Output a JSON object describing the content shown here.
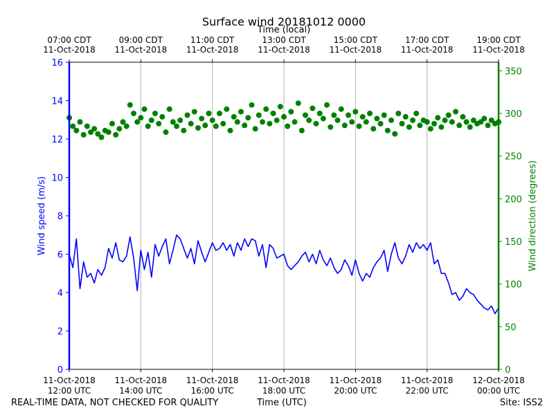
{
  "chart_data": {
    "type": "line+scatter",
    "title": "Surface wind 20181012 0000",
    "top_axis_label": "Time (local)",
    "xlabel": "Time (UTC)",
    "ylabel_left": "Wind speed (m/s)",
    "ylabel_right": "Wind direction (degrees)",
    "ylim_left": [
      0,
      16
    ],
    "ylim_right": [
      0,
      360
    ],
    "yticks_left": [
      "0",
      "2",
      "4",
      "6",
      "8",
      "10",
      "12",
      "14",
      "16"
    ],
    "yticks_right": [
      "0",
      "50",
      "100",
      "150",
      "200",
      "250",
      "300",
      "350"
    ],
    "xlim_hours_utc": [
      12,
      24
    ],
    "x_grid": true,
    "x_ticks_utc": [
      {
        "h": 12,
        "date": "11-Oct-2018",
        "time": "12:00 UTC"
      },
      {
        "h": 14,
        "date": "11-Oct-2018",
        "time": "14:00 UTC"
      },
      {
        "h": 16,
        "date": "11-Oct-2018",
        "time": "16:00 UTC"
      },
      {
        "h": 18,
        "date": "11-Oct-2018",
        "time": "18:00 UTC"
      },
      {
        "h": 20,
        "date": "11-Oct-2018",
        "time": "20:00 UTC"
      },
      {
        "h": 22,
        "date": "11-Oct-2018",
        "time": "22:00 UTC"
      },
      {
        "h": 24,
        "date": "12-Oct-2018",
        "time": "00:00 UTC"
      }
    ],
    "x_ticks_local": [
      {
        "h": 12,
        "time": "07:00 CDT",
        "date": "11-Oct-2018"
      },
      {
        "h": 14,
        "time": "09:00 CDT",
        "date": "11-Oct-2018"
      },
      {
        "h": 16,
        "time": "11:00 CDT",
        "date": "11-Oct-2018"
      },
      {
        "h": 18,
        "time": "13:00 CDT",
        "date": "11-Oct-2018"
      },
      {
        "h": 20,
        "time": "15:00 CDT",
        "date": "11-Oct-2018"
      },
      {
        "h": 22,
        "time": "17:00 CDT",
        "date": "11-Oct-2018"
      },
      {
        "h": 24,
        "time": "19:00 CDT",
        "date": "11-Oct-2018"
      }
    ],
    "series": [
      {
        "name": "Wind speed",
        "axis": "left",
        "style": "line",
        "color": "#0000ff",
        "x": [
          12.0,
          12.1,
          12.2,
          12.3,
          12.4,
          12.5,
          12.6,
          12.7,
          12.8,
          12.9,
          13.0,
          13.1,
          13.2,
          13.3,
          13.4,
          13.5,
          13.6,
          13.7,
          13.8,
          13.9,
          14.0,
          14.1,
          14.2,
          14.3,
          14.4,
          14.5,
          14.6,
          14.7,
          14.8,
          14.9,
          15.0,
          15.1,
          15.2,
          15.3,
          15.4,
          15.5,
          15.6,
          15.7,
          15.8,
          15.9,
          16.0,
          16.1,
          16.2,
          16.3,
          16.4,
          16.5,
          16.6,
          16.7,
          16.8,
          16.9,
          17.0,
          17.1,
          17.2,
          17.3,
          17.4,
          17.5,
          17.6,
          17.7,
          17.8,
          17.9,
          18.0,
          18.1,
          18.2,
          18.3,
          18.4,
          18.5,
          18.6,
          18.7,
          18.8,
          18.9,
          19.0,
          19.1,
          19.2,
          19.3,
          19.4,
          19.5,
          19.6,
          19.7,
          19.8,
          19.9,
          20.0,
          20.1,
          20.2,
          20.3,
          20.4,
          20.5,
          20.6,
          20.7,
          20.8,
          20.9,
          21.0,
          21.1,
          21.2,
          21.3,
          21.4,
          21.5,
          21.6,
          21.7,
          21.8,
          21.9,
          22.0,
          22.1,
          22.2,
          22.3,
          22.4,
          22.5,
          22.6,
          22.7,
          22.8,
          22.9,
          23.0,
          23.1,
          23.2,
          23.3,
          23.4,
          23.5,
          23.6,
          23.7,
          23.8,
          23.9,
          24.0
        ],
        "values": [
          6.0,
          5.3,
          6.8,
          4.2,
          5.6,
          4.8,
          5.0,
          4.5,
          5.2,
          4.9,
          5.3,
          6.3,
          5.8,
          6.6,
          5.7,
          5.6,
          5.9,
          6.9,
          5.8,
          4.1,
          6.2,
          5.2,
          6.1,
          4.8,
          6.5,
          5.9,
          6.4,
          6.8,
          5.5,
          6.2,
          7.0,
          6.8,
          6.3,
          5.8,
          6.3,
          5.5,
          6.7,
          6.1,
          5.6,
          6.1,
          6.6,
          6.2,
          6.3,
          6.6,
          6.2,
          6.5,
          5.9,
          6.6,
          6.2,
          6.8,
          6.4,
          6.8,
          6.7,
          5.9,
          6.5,
          5.3,
          6.5,
          6.3,
          5.8,
          5.9,
          6.0,
          5.4,
          5.2,
          5.4,
          5.6,
          5.9,
          6.1,
          5.6,
          6.0,
          5.5,
          6.2,
          5.7,
          5.4,
          5.8,
          5.3,
          5.0,
          5.2,
          5.7,
          5.4,
          4.9,
          5.7,
          5.0,
          4.6,
          5.0,
          4.8,
          5.3,
          5.6,
          5.8,
          6.2,
          5.1,
          6.0,
          6.6,
          5.8,
          5.5,
          5.9,
          6.5,
          6.1,
          6.6,
          6.3,
          6.5,
          6.2,
          6.6,
          5.5,
          5.7,
          5.0,
          5.0,
          4.5,
          3.9,
          4.0,
          3.6,
          3.8,
          4.2,
          4.0,
          3.9,
          3.6,
          3.4,
          3.2,
          3.1,
          3.3,
          2.9,
          3.2
        ]
      },
      {
        "name": "Wind direction",
        "axis": "right",
        "style": "scatter",
        "color": "#008000",
        "x": [
          12.0,
          12.1,
          12.2,
          12.3,
          12.4,
          12.5,
          12.6,
          12.7,
          12.8,
          12.9,
          13.0,
          13.1,
          13.2,
          13.3,
          13.4,
          13.5,
          13.6,
          13.7,
          13.8,
          13.9,
          14.0,
          14.1,
          14.2,
          14.3,
          14.4,
          14.5,
          14.6,
          14.7,
          14.8,
          14.9,
          15.0,
          15.1,
          15.2,
          15.3,
          15.4,
          15.5,
          15.6,
          15.7,
          15.8,
          15.9,
          16.0,
          16.1,
          16.2,
          16.3,
          16.4,
          16.5,
          16.6,
          16.7,
          16.8,
          16.9,
          17.0,
          17.1,
          17.2,
          17.3,
          17.4,
          17.5,
          17.6,
          17.7,
          17.8,
          17.9,
          18.0,
          18.1,
          18.2,
          18.3,
          18.4,
          18.5,
          18.6,
          18.7,
          18.8,
          18.9,
          19.0,
          19.1,
          19.2,
          19.3,
          19.4,
          19.5,
          19.6,
          19.7,
          19.8,
          19.9,
          20.0,
          20.1,
          20.2,
          20.3,
          20.4,
          20.5,
          20.6,
          20.7,
          20.8,
          20.9,
          21.0,
          21.1,
          21.2,
          21.3,
          21.4,
          21.5,
          21.6,
          21.7,
          21.8,
          21.9,
          22.0,
          22.1,
          22.2,
          22.3,
          22.4,
          22.5,
          22.6,
          22.7,
          22.8,
          22.9,
          23.0,
          23.1,
          23.2,
          23.3,
          23.4,
          23.5,
          23.6,
          23.7,
          23.8,
          23.9,
          24.0
        ],
        "values": [
          295,
          285,
          280,
          290,
          275,
          285,
          278,
          282,
          276,
          272,
          280,
          278,
          288,
          275,
          282,
          290,
          285,
          310,
          300,
          290,
          295,
          305,
          285,
          292,
          300,
          288,
          296,
          278,
          305,
          290,
          285,
          292,
          280,
          298,
          288,
          302,
          283,
          294,
          286,
          300,
          292,
          285,
          300,
          288,
          305,
          280,
          296,
          290,
          302,
          286,
          295,
          310,
          282,
          298,
          290,
          305,
          288,
          300,
          292,
          308,
          296,
          285,
          302,
          290,
          312,
          280,
          298,
          292,
          306,
          288,
          300,
          294,
          310,
          284,
          298,
          292,
          305,
          286,
          298,
          290,
          302,
          285,
          296,
          290,
          300,
          282,
          294,
          288,
          298,
          280,
          292,
          276,
          300,
          288,
          296,
          284,
          292,
          300,
          286,
          292,
          290,
          282,
          288,
          295,
          284,
          292,
          298,
          290,
          302,
          286,
          296,
          290,
          284,
          292,
          288,
          290,
          294,
          286,
          292,
          288,
          290
        ]
      }
    ]
  },
  "footer": {
    "left": "REAL-TIME DATA, NOT CHECKED FOR QUALITY",
    "center": "Time (UTC)",
    "right": "Site: ISS2"
  }
}
